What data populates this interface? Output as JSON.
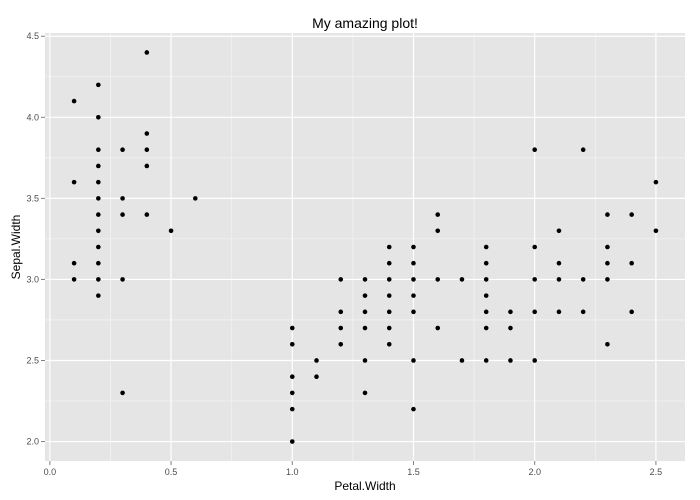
{
  "chart_data": {
    "type": "scatter",
    "title": "My amazing plot!",
    "xlabel": "Petal.Width",
    "ylabel": "Sepal.Width",
    "xlim": [
      -0.02,
      2.62
    ],
    "ylim": [
      1.88,
      4.52
    ],
    "xticks": [
      "0.0",
      "0.5",
      "1.0",
      "1.5",
      "2.0",
      "2.5"
    ],
    "yticks": [
      "2.0",
      "2.5",
      "3.0",
      "3.5",
      "4.0",
      "4.5"
    ],
    "grid": true,
    "colors": {
      "panel": "#e5e5e5",
      "grid_major": "#ffffff",
      "grid_minor": "#f2f2f2",
      "point": "#000000",
      "tick_text": "#4d4d4d"
    },
    "points": [
      [
        0.1,
        4.1
      ],
      [
        0.1,
        3.6
      ],
      [
        0.1,
        3.1
      ],
      [
        0.1,
        3.0
      ],
      [
        0.2,
        4.2
      ],
      [
        0.2,
        4.0
      ],
      [
        0.2,
        3.8
      ],
      [
        0.2,
        3.7
      ],
      [
        0.2,
        3.6
      ],
      [
        0.2,
        3.5
      ],
      [
        0.2,
        3.4
      ],
      [
        0.2,
        3.3
      ],
      [
        0.2,
        3.2
      ],
      [
        0.2,
        3.1
      ],
      [
        0.2,
        3.0
      ],
      [
        0.2,
        2.9
      ],
      [
        0.3,
        3.8
      ],
      [
        0.3,
        3.5
      ],
      [
        0.3,
        3.4
      ],
      [
        0.3,
        3.0
      ],
      [
        0.3,
        2.3
      ],
      [
        0.4,
        4.4
      ],
      [
        0.4,
        3.9
      ],
      [
        0.4,
        3.8
      ],
      [
        0.4,
        3.7
      ],
      [
        0.4,
        3.4
      ],
      [
        0.5,
        3.3
      ],
      [
        0.6,
        3.5
      ],
      [
        1.0,
        2.7
      ],
      [
        1.0,
        2.6
      ],
      [
        1.0,
        2.4
      ],
      [
        1.0,
        2.3
      ],
      [
        1.0,
        2.2
      ],
      [
        1.0,
        2.0
      ],
      [
        1.1,
        2.5
      ],
      [
        1.1,
        2.4
      ],
      [
        1.2,
        3.0
      ],
      [
        1.2,
        2.8
      ],
      [
        1.2,
        2.7
      ],
      [
        1.2,
        2.6
      ],
      [
        1.3,
        3.0
      ],
      [
        1.3,
        2.9
      ],
      [
        1.3,
        2.8
      ],
      [
        1.3,
        2.7
      ],
      [
        1.3,
        2.5
      ],
      [
        1.3,
        2.3
      ],
      [
        1.4,
        3.2
      ],
      [
        1.4,
        3.1
      ],
      [
        1.4,
        3.0
      ],
      [
        1.4,
        2.9
      ],
      [
        1.4,
        2.8
      ],
      [
        1.4,
        2.7
      ],
      [
        1.4,
        2.6
      ],
      [
        1.5,
        3.2
      ],
      [
        1.5,
        3.1
      ],
      [
        1.5,
        3.0
      ],
      [
        1.5,
        2.9
      ],
      [
        1.5,
        2.8
      ],
      [
        1.5,
        2.5
      ],
      [
        1.5,
        2.2
      ],
      [
        1.6,
        3.4
      ],
      [
        1.6,
        3.3
      ],
      [
        1.6,
        3.0
      ],
      [
        1.6,
        2.7
      ],
      [
        1.7,
        3.0
      ],
      [
        1.7,
        2.5
      ],
      [
        1.8,
        3.2
      ],
      [
        1.8,
        3.1
      ],
      [
        1.8,
        3.0
      ],
      [
        1.8,
        2.9
      ],
      [
        1.8,
        2.8
      ],
      [
        1.8,
        2.7
      ],
      [
        1.8,
        2.5
      ],
      [
        1.9,
        2.8
      ],
      [
        1.9,
        2.7
      ],
      [
        1.9,
        2.5
      ],
      [
        2.0,
        3.8
      ],
      [
        2.0,
        3.2
      ],
      [
        2.0,
        3.0
      ],
      [
        2.0,
        2.8
      ],
      [
        2.0,
        2.5
      ],
      [
        2.1,
        3.3
      ],
      [
        2.1,
        3.1
      ],
      [
        2.1,
        3.0
      ],
      [
        2.1,
        2.8
      ],
      [
        2.2,
        3.8
      ],
      [
        2.2,
        3.0
      ],
      [
        2.2,
        2.8
      ],
      [
        2.3,
        3.4
      ],
      [
        2.3,
        3.2
      ],
      [
        2.3,
        3.1
      ],
      [
        2.3,
        3.0
      ],
      [
        2.3,
        2.6
      ],
      [
        2.4,
        3.4
      ],
      [
        2.4,
        3.1
      ],
      [
        2.4,
        2.8
      ],
      [
        2.5,
        3.6
      ],
      [
        2.5,
        3.3
      ]
    ]
  }
}
